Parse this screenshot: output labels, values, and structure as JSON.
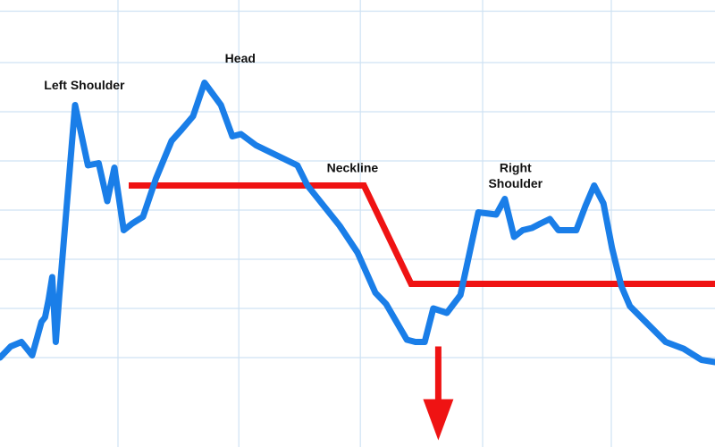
{
  "chart_data": {
    "type": "line",
    "title": "",
    "xlabel": "",
    "ylabel": "",
    "grid": true,
    "xlim": [
      0,
      100
    ],
    "ylim": [
      0,
      100
    ],
    "series": [
      {
        "color": "#1a7ee8",
        "x": [
          0,
          1.5,
          3,
          4.5,
          5.8,
          6.3,
          6.8,
          7.3,
          7.8,
          8.3,
          10.5,
          12.3,
          13.8,
          15,
          16,
          17.3,
          18.5,
          20,
          21.8,
          24,
          25.4,
          27,
          28.6,
          30.9,
          32.5,
          33.7,
          35.8,
          41.6,
          43,
          44.5,
          47.5,
          50,
          52.5,
          54,
          56.9,
          58.1,
          59.4,
          60.6,
          62.5,
          64.4,
          66.9,
          69.4,
          70.6,
          71.9,
          73.1,
          74.4,
          75.6,
          76.9,
          78.1,
          79.4,
          80.6,
          81.9,
          83.1,
          84.4,
          85.6,
          86.9,
          88.1,
          90.6,
          93.1,
          95.6,
          98.1,
          100
        ],
        "y": [
          20,
          22.5,
          23.5,
          20.5,
          28,
          29,
          33,
          38,
          23.5,
          34,
          76.5,
          63,
          63.5,
          55,
          62.5,
          48.5,
          50,
          51.5,
          60,
          68.5,
          71,
          74,
          81.5,
          76.5,
          69.5,
          70,
          67.5,
          63,
          58.5,
          55.5,
          49.5,
          43.5,
          34.5,
          32,
          24,
          23.5,
          23.5,
          31,
          30,
          34,
          52.5,
          52,
          55.5,
          47,
          48.5,
          49,
          50,
          51,
          48.5,
          48.5,
          48.5,
          54,
          58.5,
          54.5,
          44.5,
          36,
          31.5,
          27.5,
          23.5,
          22,
          19.5,
          19
        ]
      }
    ],
    "neckline": {
      "color": "#ef1313",
      "x": [
        18,
        50.9,
        57.5,
        100
      ],
      "y": [
        58.5,
        58.5,
        36.5,
        36.5
      ]
    },
    "target_arrow": {
      "color": "#ef1313",
      "x": 61.3,
      "y_start": 22.5,
      "y_end": 1.5
    },
    "annotations": [
      {
        "text": "Left Shoulder",
        "x": 11.8,
        "y": 80
      },
      {
        "text": "Head",
        "x": 33.6,
        "y": 86
      },
      {
        "text": "Neckline",
        "x": 49.3,
        "y": 61.5
      },
      {
        "text": "Right",
        "x": 72.1,
        "y": 61.5
      },
      {
        "text": "Shoulder",
        "x": 72.1,
        "y": 58
      }
    ],
    "grid_x": [
      16.5,
      33.4,
      50.4,
      67.5,
      85.5
    ],
    "grid_y": [
      20,
      31,
      42,
      53,
      64,
      75,
      86,
      97.5
    ]
  }
}
